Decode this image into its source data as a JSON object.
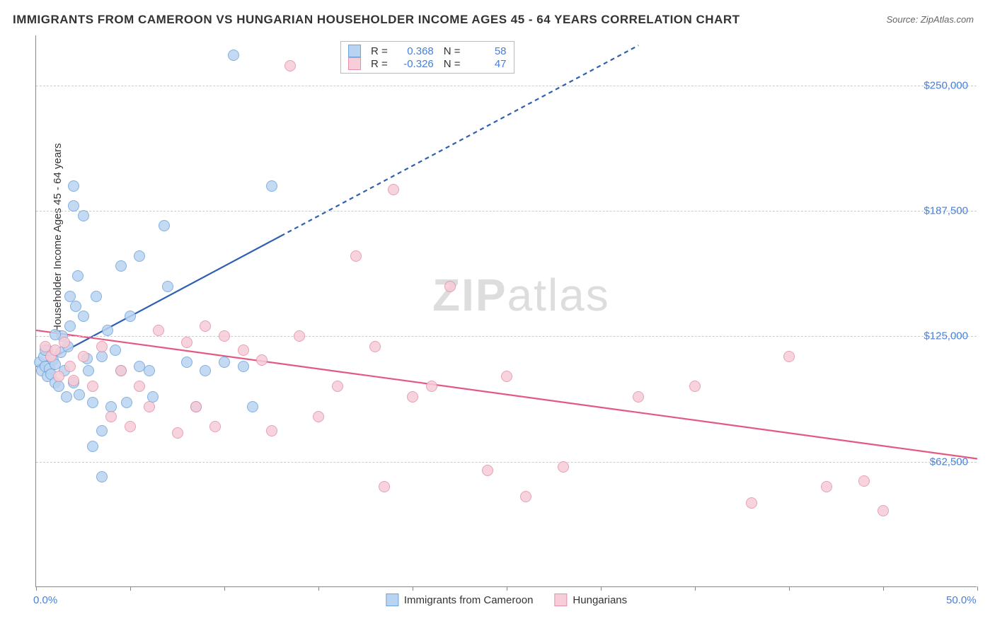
{
  "title": "IMMIGRANTS FROM CAMEROON VS HUNGARIAN HOUSEHOLDER INCOME AGES 45 - 64 YEARS CORRELATION CHART",
  "source": "Source: ZipAtlas.com",
  "ylabel": "Householder Income Ages 45 - 64 years",
  "watermark_a": "ZIP",
  "watermark_b": "atlas",
  "chart": {
    "type": "scatter",
    "xlim": [
      0,
      50
    ],
    "ylim": [
      0,
      275000
    ],
    "xticks_pct": [
      0,
      5,
      10,
      15,
      20,
      25,
      30,
      35,
      40,
      45,
      50
    ],
    "xtick_labels_visible": {
      "0": "0.0%",
      "50": "50.0%"
    },
    "yticks": [
      62500,
      125000,
      187500,
      250000
    ],
    "ytick_labels": [
      "$62,500",
      "$125,000",
      "$187,500",
      "$250,000"
    ],
    "background_color": "#ffffff",
    "grid_color": "#cccccc",
    "series": [
      {
        "name": "Immigrants from Cameroon",
        "color_fill": "#b9d4f0",
        "color_stroke": "#6fa3dc",
        "marker_radius": 8,
        "R": "0.368",
        "N": "58",
        "regression": {
          "solid_from": [
            0,
            110000
          ],
          "solid_to": [
            13,
            175000
          ],
          "dash_to": [
            32,
            270000
          ],
          "color": "#2e5fb0",
          "width": 2.2
        },
        "points_pct_income": [
          [
            0.2,
            112000
          ],
          [
            0.3,
            108000
          ],
          [
            0.4,
            115000
          ],
          [
            0.5,
            110000
          ],
          [
            0.6,
            105000
          ],
          [
            0.6,
            118000
          ],
          [
            0.7,
            109000
          ],
          [
            0.8,
            106000
          ],
          [
            0.9,
            113000
          ],
          [
            1.0,
            111000
          ],
          [
            1.0,
            102000
          ],
          [
            1.2,
            100000
          ],
          [
            1.3,
            117000
          ],
          [
            1.4,
            125000
          ],
          [
            1.5,
            108000
          ],
          [
            1.6,
            95000
          ],
          [
            1.7,
            120000
          ],
          [
            1.8,
            130000
          ],
          [
            2.0,
            200000
          ],
          [
            2.0,
            190000
          ],
          [
            2.1,
            140000
          ],
          [
            2.3,
            96000
          ],
          [
            2.5,
            135000
          ],
          [
            2.5,
            185000
          ],
          [
            2.7,
            114000
          ],
          [
            3.0,
            92000
          ],
          [
            3.0,
            70000
          ],
          [
            3.2,
            145000
          ],
          [
            3.5,
            55000
          ],
          [
            3.5,
            78000
          ],
          [
            3.8,
            128000
          ],
          [
            4.0,
            90000
          ],
          [
            4.2,
            118000
          ],
          [
            4.5,
            160000
          ],
          [
            4.5,
            108000
          ],
          [
            4.8,
            92000
          ],
          [
            5.0,
            135000
          ],
          [
            5.5,
            165000
          ],
          [
            5.5,
            110000
          ],
          [
            6.0,
            108000
          ],
          [
            6.2,
            95000
          ],
          [
            6.8,
            180000
          ],
          [
            7.0,
            150000
          ],
          [
            8.0,
            112000
          ],
          [
            8.5,
            90000
          ],
          [
            9.0,
            108000
          ],
          [
            10.0,
            112000
          ],
          [
            10.5,
            265000
          ],
          [
            11.0,
            110000
          ],
          [
            11.5,
            90000
          ],
          [
            12.5,
            200000
          ],
          [
            1.8,
            145000
          ],
          [
            2.2,
            155000
          ],
          [
            2.8,
            108000
          ],
          [
            3.5,
            115000
          ],
          [
            1.0,
            126000
          ],
          [
            0.5,
            118000
          ],
          [
            2.0,
            102000
          ]
        ]
      },
      {
        "name": "Hungarians",
        "color_fill": "#f6cdd8",
        "color_stroke": "#e690a8",
        "marker_radius": 8,
        "R": "-0.326",
        "N": "47",
        "regression": {
          "solid_from": [
            0,
            128000
          ],
          "solid_to": [
            50,
            64000
          ],
          "color": "#e35982",
          "width": 2.2
        },
        "points_pct_income": [
          [
            0.5,
            120000
          ],
          [
            0.8,
            115000
          ],
          [
            1.0,
            118000
          ],
          [
            1.2,
            105000
          ],
          [
            1.5,
            122000
          ],
          [
            1.8,
            110000
          ],
          [
            2.0,
            103000
          ],
          [
            2.5,
            115000
          ],
          [
            3.0,
            100000
          ],
          [
            3.5,
            120000
          ],
          [
            4.0,
            85000
          ],
          [
            4.5,
            108000
          ],
          [
            5.0,
            80000
          ],
          [
            5.5,
            100000
          ],
          [
            6.0,
            90000
          ],
          [
            6.5,
            128000
          ],
          [
            7.5,
            77000
          ],
          [
            8.0,
            122000
          ],
          [
            8.5,
            90000
          ],
          [
            9.0,
            130000
          ],
          [
            9.5,
            80000
          ],
          [
            10.0,
            125000
          ],
          [
            11.0,
            118000
          ],
          [
            12.0,
            113000
          ],
          [
            12.5,
            78000
          ],
          [
            13.5,
            260000
          ],
          [
            14.0,
            125000
          ],
          [
            15.0,
            85000
          ],
          [
            16.0,
            100000
          ],
          [
            17.0,
            165000
          ],
          [
            18.0,
            120000
          ],
          [
            18.5,
            50000
          ],
          [
            19.0,
            198000
          ],
          [
            20.0,
            95000
          ],
          [
            21.0,
            100000
          ],
          [
            22.0,
            150000
          ],
          [
            24.0,
            58000
          ],
          [
            25.0,
            105000
          ],
          [
            26.0,
            45000
          ],
          [
            28.0,
            60000
          ],
          [
            32.0,
            95000
          ],
          [
            35.0,
            100000
          ],
          [
            38.0,
            42000
          ],
          [
            40.0,
            115000
          ],
          [
            42.0,
            50000
          ],
          [
            44.0,
            53000
          ],
          [
            45.0,
            38000
          ]
        ]
      }
    ],
    "corr_legend_labels": {
      "R": "R =",
      "N": "N ="
    }
  },
  "bottom_legend": {
    "label_a": "Immigrants from Cameroon",
    "label_b": "Hungarians"
  }
}
